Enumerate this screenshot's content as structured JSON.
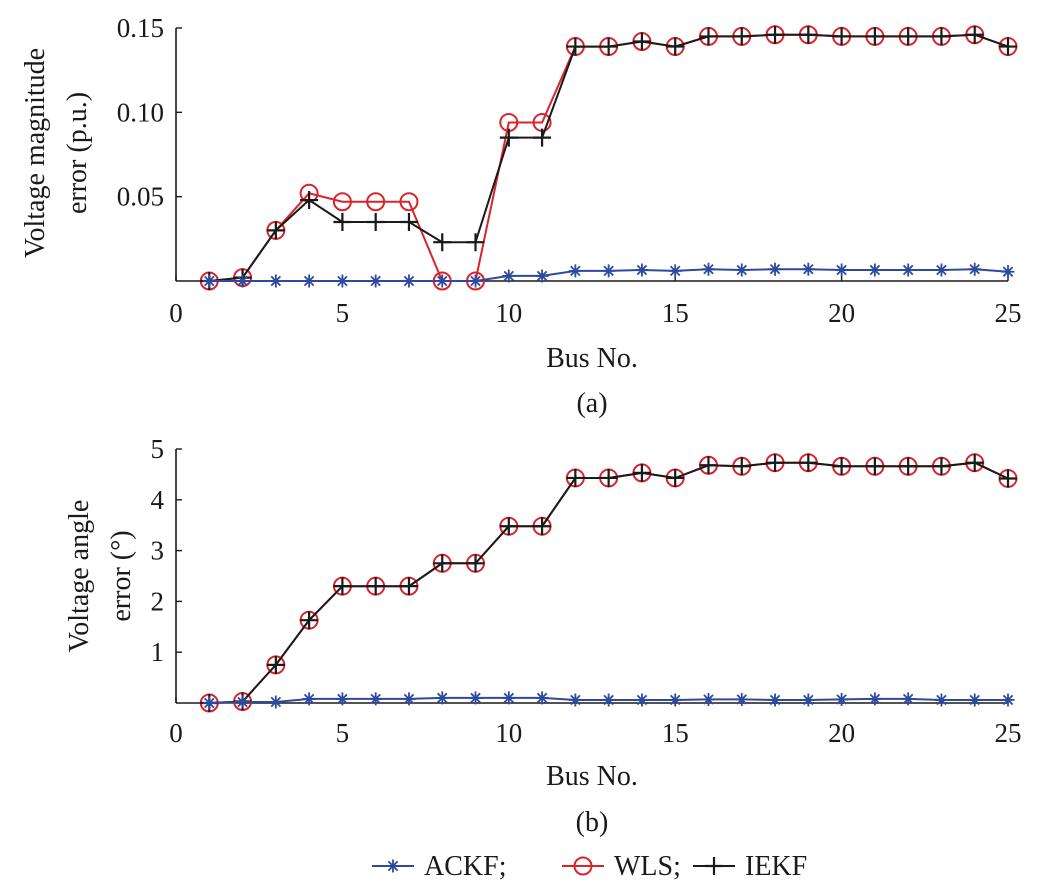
{
  "chart_data": [
    {
      "type": "line",
      "subtitle": "(a)",
      "xlabel": "Bus No.",
      "ylabel_lines": [
        "Voltage magnitude",
        "error (p.u.)"
      ],
      "xlim": [
        0,
        25
      ],
      "ylim": [
        0,
        0.15
      ],
      "xticks": [
        "0",
        "5",
        "10",
        "15",
        "20",
        "25"
      ],
      "xtick_values": [
        0,
        5,
        10,
        15,
        20,
        25
      ],
      "yticks": [
        "0.05",
        "0.10",
        "0.15"
      ],
      "ytick_values": [
        0.05,
        0.1,
        0.15
      ],
      "grid": false,
      "x": [
        1,
        2,
        3,
        4,
        5,
        6,
        7,
        8,
        9,
        10,
        11,
        12,
        13,
        14,
        15,
        16,
        17,
        18,
        19,
        20,
        21,
        22,
        23,
        24,
        25
      ],
      "series": [
        {
          "name": "ACKF",
          "color": "#2e4a9e",
          "marker": "asterisk",
          "values": [
            0,
            0,
            0,
            0,
            0,
            0,
            0,
            0,
            0,
            0.003,
            0.003,
            0.006,
            0.006,
            0.0065,
            0.006,
            0.007,
            0.0065,
            0.007,
            0.007,
            0.0065,
            0.0065,
            0.0065,
            0.0065,
            0.007,
            0.0055
          ]
        },
        {
          "name": "WLS",
          "color": "#d9242b",
          "marker": "circle",
          "values": [
            0,
            0.002,
            0.03,
            0.052,
            0.047,
            0.047,
            0.047,
            0,
            0,
            0.094,
            0.094,
            0.139,
            0.139,
            0.142,
            0.139,
            0.145,
            0.145,
            0.146,
            0.146,
            0.145,
            0.145,
            0.145,
            0.145,
            0.146,
            0.139
          ]
        },
        {
          "name": "IEKF",
          "color": "#1a1a1a",
          "marker": "plus",
          "values": [
            0,
            0.002,
            0.03,
            0.048,
            0.035,
            0.035,
            0.035,
            0.023,
            0.023,
            0.085,
            0.085,
            0.139,
            0.139,
            0.142,
            0.139,
            0.145,
            0.145,
            0.146,
            0.146,
            0.145,
            0.145,
            0.145,
            0.145,
            0.146,
            0.139
          ]
        }
      ]
    },
    {
      "type": "line",
      "subtitle": "(b)",
      "xlabel": "Bus No.",
      "ylabel_lines": [
        "Voltage angle",
        "error (°)"
      ],
      "xlim": [
        0,
        25
      ],
      "ylim": [
        0,
        5
      ],
      "xticks": [
        "0",
        "5",
        "10",
        "15",
        "20",
        "25"
      ],
      "xtick_values": [
        0,
        5,
        10,
        15,
        20,
        25
      ],
      "yticks": [
        "1",
        "2",
        "3",
        "4",
        "5"
      ],
      "ytick_values": [
        1,
        2,
        3,
        4,
        5
      ],
      "grid": false,
      "x": [
        1,
        2,
        3,
        4,
        5,
        6,
        7,
        8,
        9,
        10,
        11,
        12,
        13,
        14,
        15,
        16,
        17,
        18,
        19,
        20,
        21,
        22,
        23,
        24,
        25
      ],
      "series": [
        {
          "name": "ACKF",
          "color": "#2e4a9e",
          "marker": "asterisk",
          "values": [
            0,
            0.02,
            0.02,
            0.08,
            0.08,
            0.08,
            0.08,
            0.1,
            0.1,
            0.1,
            0.1,
            0.06,
            0.06,
            0.06,
            0.06,
            0.07,
            0.07,
            0.06,
            0.06,
            0.07,
            0.08,
            0.08,
            0.06,
            0.06,
            0.06
          ]
        },
        {
          "name": "WLS",
          "color": "#d9242b",
          "marker": "circle",
          "values": [
            0,
            0.03,
            0.75,
            1.63,
            2.3,
            2.3,
            2.3,
            2.75,
            2.75,
            3.48,
            3.48,
            4.43,
            4.43,
            4.53,
            4.43,
            4.68,
            4.66,
            4.73,
            4.73,
            4.66,
            4.66,
            4.66,
            4.66,
            4.73,
            4.42
          ]
        },
        {
          "name": "IEKF",
          "color": "#1a1a1a",
          "marker": "plus",
          "values": [
            0,
            0.03,
            0.75,
            1.63,
            2.3,
            2.3,
            2.3,
            2.75,
            2.75,
            3.48,
            3.48,
            4.43,
            4.43,
            4.53,
            4.43,
            4.68,
            4.66,
            4.73,
            4.73,
            4.66,
            4.66,
            4.66,
            4.66,
            4.73,
            4.42
          ]
        }
      ]
    }
  ],
  "legend": {
    "placement": "bottom-center",
    "entries": [
      {
        "label": "ACKF;",
        "series": "ACKF"
      },
      {
        "label": "WLS;",
        "series": "WLS"
      },
      {
        "label": "IEKF",
        "series": "IEKF"
      }
    ]
  }
}
